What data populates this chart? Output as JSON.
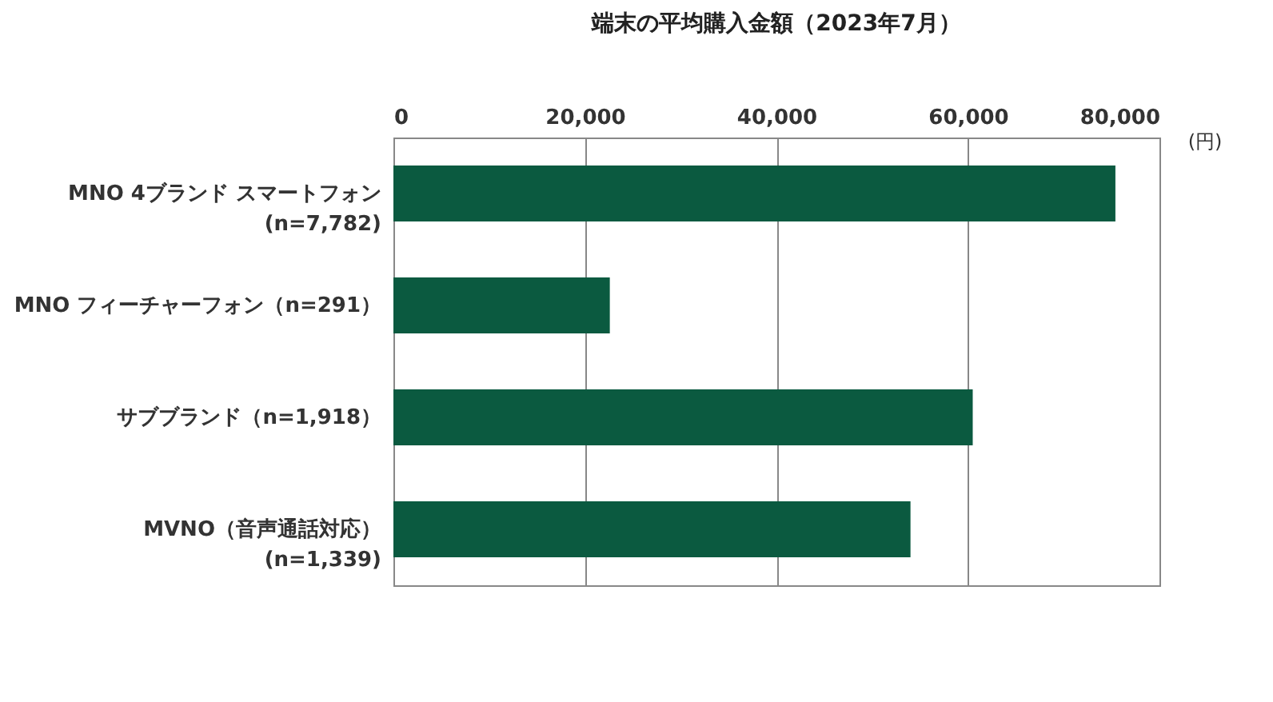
{
  "chart_data": {
    "type": "bar",
    "orientation": "horizontal",
    "title": "端末の平均購入金額（2023年7月）",
    "xlabel": "(円)",
    "categories": [
      "MNO 4ブランド スマートフォン\n(n=7,782)",
      "MNO フィーチャーフォン（n=291）",
      "サブブランド（n=1,918）",
      "MVNO（音声通話対応）\n(n=1,339)"
    ],
    "values": [
      75400,
      22600,
      60500,
      54000
    ],
    "color": "#0b5a40",
    "xlim": [
      0,
      80000
    ],
    "xticks": [
      {
        "value": 0,
        "label": "0"
      },
      {
        "value": 20000,
        "label": "20,000"
      },
      {
        "value": 40000,
        "label": "40,000"
      },
      {
        "value": 60000,
        "label": "60,000"
      },
      {
        "value": 80000,
        "label": "80,000"
      }
    ],
    "grid": "x"
  }
}
